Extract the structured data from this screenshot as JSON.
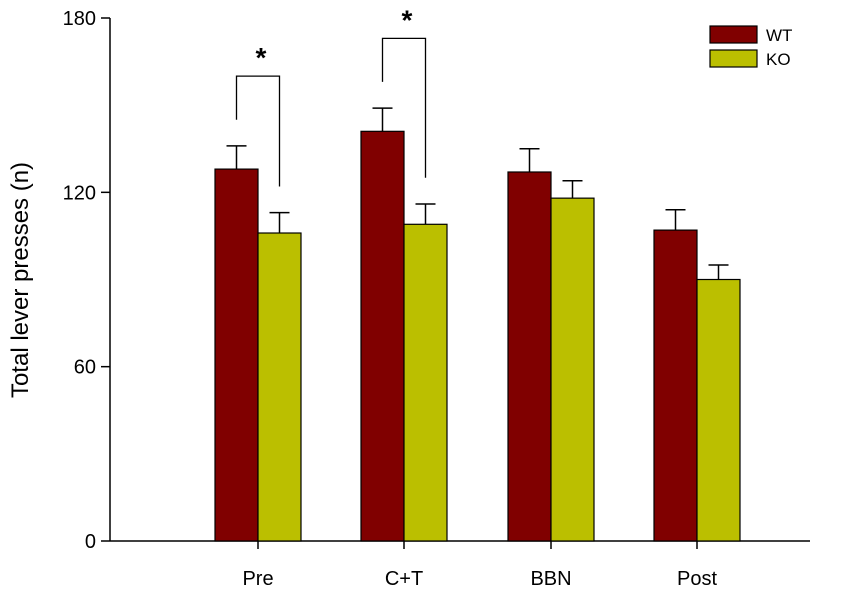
{
  "chart_data": {
    "type": "bar",
    "title": "",
    "xlabel": "",
    "ylabel": "Total lever presses (n)",
    "ylim": [
      0,
      180
    ],
    "yticks": [
      0,
      60,
      120,
      180
    ],
    "categories": [
      "Pre",
      "C+T",
      "BBN",
      "Post"
    ],
    "series": [
      {
        "name": "WT",
        "color": "#800000",
        "values": [
          128,
          141,
          127,
          107
        ],
        "errors": [
          8,
          8,
          8,
          7
        ]
      },
      {
        "name": "KO",
        "color": "#BBBF00",
        "values": [
          106,
          109,
          118,
          90
        ],
        "errors": [
          7,
          7,
          6,
          5
        ]
      }
    ],
    "annotations": [
      {
        "label": "*",
        "category": "Pre"
      },
      {
        "label": "*",
        "category": "C+T"
      }
    ],
    "legend_position": "top-right",
    "grid": false
  }
}
